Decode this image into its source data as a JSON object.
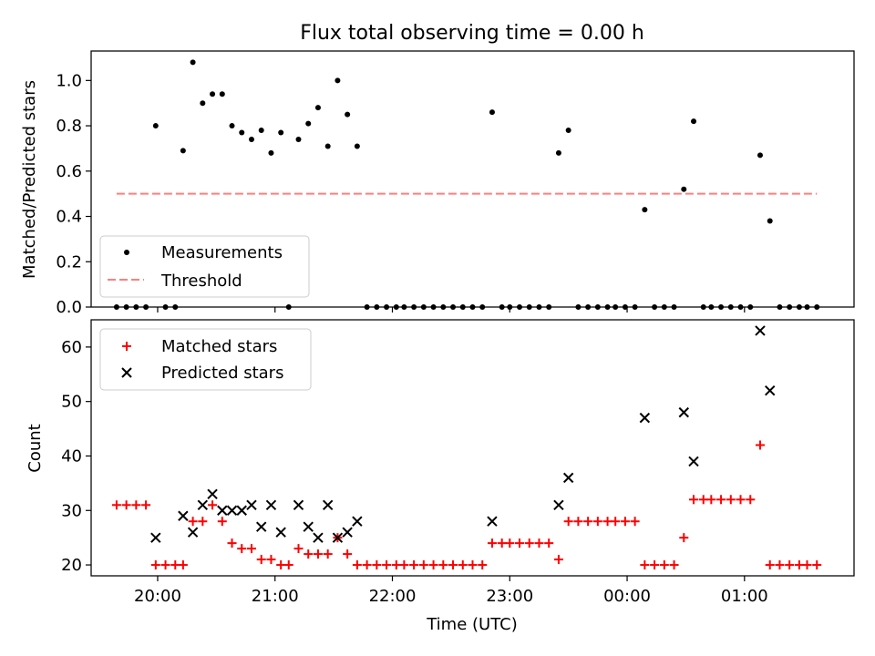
{
  "title": "Flux total observing time = 0.00 h",
  "colors": {
    "measurement": "#000000",
    "threshold": "#ff7f7f",
    "matched": "#ff0000",
    "predicted": "#000000",
    "frame": "#000000"
  },
  "chart_data": [
    {
      "type": "scatter",
      "ylabel": "Matched/Predicted stars",
      "xlim": [
        "19:26",
        "01:56"
      ],
      "ylim": [
        0,
        1.13
      ],
      "yticks": [
        "0.0",
        "0.2",
        "0.4",
        "0.6",
        "0.8",
        "1.0"
      ],
      "ytick_values": [
        0,
        0.2,
        0.4,
        0.6,
        0.8,
        1.0
      ],
      "grid": false,
      "legend": {
        "placement": "lower-left",
        "entries": [
          "Measurements",
          "Threshold"
        ]
      },
      "series": [
        {
          "name": "Measurements",
          "marker": "dot",
          "points": [
            [
              "19:39",
              0
            ],
            [
              "19:44",
              0
            ],
            [
              "19:49",
              0
            ],
            [
              "19:54",
              0
            ],
            [
              "19:59",
              0.8
            ],
            [
              "20:04",
              0
            ],
            [
              "20:09",
              0
            ],
            [
              "20:13",
              0.69
            ],
            [
              "20:18",
              1.08
            ],
            [
              "20:23",
              0.9
            ],
            [
              "20:28",
              0.94
            ],
            [
              "20:33",
              0.94
            ],
            [
              "20:38",
              0.8
            ],
            [
              "20:43",
              0.77
            ],
            [
              "20:48",
              0.74
            ],
            [
              "20:53",
              0.78
            ],
            [
              "20:58",
              0.68
            ],
            [
              "21:03",
              0.77
            ],
            [
              "21:07",
              0
            ],
            [
              "21:12",
              0.74
            ],
            [
              "21:17",
              0.81
            ],
            [
              "21:22",
              0.88
            ],
            [
              "21:27",
              0.71
            ],
            [
              "21:32",
              1.0
            ],
            [
              "21:37",
              0.85
            ],
            [
              "21:42",
              0.71
            ],
            [
              "21:47",
              0
            ],
            [
              "21:52",
              0
            ],
            [
              "21:57",
              0
            ],
            [
              "22:02",
              0
            ],
            [
              "22:06",
              0
            ],
            [
              "22:11",
              0
            ],
            [
              "22:16",
              0
            ],
            [
              "22:21",
              0
            ],
            [
              "22:26",
              0
            ],
            [
              "22:31",
              0
            ],
            [
              "22:36",
              0
            ],
            [
              "22:41",
              0
            ],
            [
              "22:46",
              0
            ],
            [
              "22:51",
              0.86
            ],
            [
              "22:56",
              0
            ],
            [
              "23:00",
              0
            ],
            [
              "23:05",
              0
            ],
            [
              "23:10",
              0
            ],
            [
              "23:15",
              0
            ],
            [
              "23:20",
              0
            ],
            [
              "23:25",
              0.68
            ],
            [
              "23:30",
              0.78
            ],
            [
              "23:35",
              0
            ],
            [
              "23:40",
              0
            ],
            [
              "23:45",
              0
            ],
            [
              "23:50",
              0
            ],
            [
              "23:54",
              0
            ],
            [
              "23:59",
              0
            ],
            [
              "00:04",
              0
            ],
            [
              "00:09",
              0.43
            ],
            [
              "00:14",
              0
            ],
            [
              "00:19",
              0
            ],
            [
              "00:24",
              0
            ],
            [
              "00:29",
              0.52
            ],
            [
              "00:34",
              0.82
            ],
            [
              "00:39",
              0
            ],
            [
              "00:43",
              0
            ],
            [
              "00:48",
              0
            ],
            [
              "00:53",
              0
            ],
            [
              "00:58",
              0
            ],
            [
              "01:03",
              0
            ],
            [
              "01:08",
              0.67
            ],
            [
              "01:13",
              0.38
            ],
            [
              "01:18",
              0
            ],
            [
              "01:23",
              0
            ],
            [
              "01:28",
              0
            ],
            [
              "01:32",
              0
            ],
            [
              "01:37",
              0
            ]
          ]
        },
        {
          "name": "Threshold",
          "style": "dashed",
          "points": [
            [
              "19:39",
              0.5
            ],
            [
              "01:37",
              0.5
            ]
          ]
        }
      ]
    },
    {
      "type": "scatter",
      "xlabel": "Time (UTC)",
      "ylabel": "Count",
      "xlim": [
        "19:26",
        "01:56"
      ],
      "ylim": [
        18,
        65
      ],
      "xticks": [
        "20:00",
        "21:00",
        "22:00",
        "23:00",
        "00:00",
        "01:00"
      ],
      "yticks": [
        "20",
        "30",
        "40",
        "50",
        "60"
      ],
      "ytick_values": [
        20,
        30,
        40,
        50,
        60
      ],
      "grid": false,
      "legend": {
        "placement": "upper-left",
        "entries": [
          "Matched stars",
          "Predicted stars"
        ]
      },
      "series": [
        {
          "name": "Matched stars",
          "marker": "plus",
          "points": [
            [
              "19:39",
              31
            ],
            [
              "19:44",
              31
            ],
            [
              "19:49",
              31
            ],
            [
              "19:54",
              31
            ],
            [
              "19:59",
              20
            ],
            [
              "20:04",
              20
            ],
            [
              "20:09",
              20
            ],
            [
              "20:13",
              20
            ],
            [
              "20:18",
              28
            ],
            [
              "20:23",
              28
            ],
            [
              "20:28",
              31
            ],
            [
              "20:33",
              28
            ],
            [
              "20:38",
              24
            ],
            [
              "20:43",
              23
            ],
            [
              "20:48",
              23
            ],
            [
              "20:53",
              21
            ],
            [
              "20:58",
              21
            ],
            [
              "21:03",
              20
            ],
            [
              "21:07",
              20
            ],
            [
              "21:12",
              23
            ],
            [
              "21:17",
              22
            ],
            [
              "21:22",
              22
            ],
            [
              "21:27",
              22
            ],
            [
              "21:32",
              25
            ],
            [
              "21:37",
              22
            ],
            [
              "21:42",
              20
            ],
            [
              "21:47",
              20
            ],
            [
              "21:52",
              20
            ],
            [
              "21:57",
              20
            ],
            [
              "22:02",
              20
            ],
            [
              "22:06",
              20
            ],
            [
              "22:11",
              20
            ],
            [
              "22:16",
              20
            ],
            [
              "22:21",
              20
            ],
            [
              "22:26",
              20
            ],
            [
              "22:31",
              20
            ],
            [
              "22:36",
              20
            ],
            [
              "22:41",
              20
            ],
            [
              "22:46",
              20
            ],
            [
              "22:51",
              24
            ],
            [
              "22:56",
              24
            ],
            [
              "23:00",
              24
            ],
            [
              "23:05",
              24
            ],
            [
              "23:10",
              24
            ],
            [
              "23:15",
              24
            ],
            [
              "23:20",
              24
            ],
            [
              "23:25",
              21
            ],
            [
              "23:30",
              28
            ],
            [
              "23:35",
              28
            ],
            [
              "23:40",
              28
            ],
            [
              "23:45",
              28
            ],
            [
              "23:50",
              28
            ],
            [
              "23:54",
              28
            ],
            [
              "23:59",
              28
            ],
            [
              "00:04",
              28
            ],
            [
              "00:09",
              20
            ],
            [
              "00:14",
              20
            ],
            [
              "00:19",
              20
            ],
            [
              "00:24",
              20
            ],
            [
              "00:29",
              25
            ],
            [
              "00:34",
              32
            ],
            [
              "00:39",
              32
            ],
            [
              "00:43",
              32
            ],
            [
              "00:48",
              32
            ],
            [
              "00:53",
              32
            ],
            [
              "00:58",
              32
            ],
            [
              "01:03",
              32
            ],
            [
              "01:08",
              42
            ],
            [
              "01:13",
              20
            ],
            [
              "01:18",
              20
            ],
            [
              "01:23",
              20
            ],
            [
              "01:28",
              20
            ],
            [
              "01:32",
              20
            ],
            [
              "01:37",
              20
            ]
          ]
        },
        {
          "name": "Predicted stars",
          "marker": "x",
          "points": [
            [
              "19:59",
              25
            ],
            [
              "20:13",
              29
            ],
            [
              "20:18",
              26
            ],
            [
              "20:23",
              31
            ],
            [
              "20:28",
              33
            ],
            [
              "20:33",
              30
            ],
            [
              "20:38",
              30
            ],
            [
              "20:43",
              30
            ],
            [
              "20:48",
              31
            ],
            [
              "20:53",
              27
            ],
            [
              "20:58",
              31
            ],
            [
              "21:03",
              26
            ],
            [
              "21:12",
              31
            ],
            [
              "21:17",
              27
            ],
            [
              "21:22",
              25
            ],
            [
              "21:27",
              31
            ],
            [
              "21:32",
              25
            ],
            [
              "21:37",
              26
            ],
            [
              "21:42",
              28
            ],
            [
              "22:51",
              28
            ],
            [
              "23:25",
              31
            ],
            [
              "23:30",
              36
            ],
            [
              "00:09",
              47
            ],
            [
              "00:29",
              48
            ],
            [
              "00:34",
              39
            ],
            [
              "01:08",
              63
            ],
            [
              "01:13",
              52
            ]
          ]
        }
      ]
    }
  ]
}
